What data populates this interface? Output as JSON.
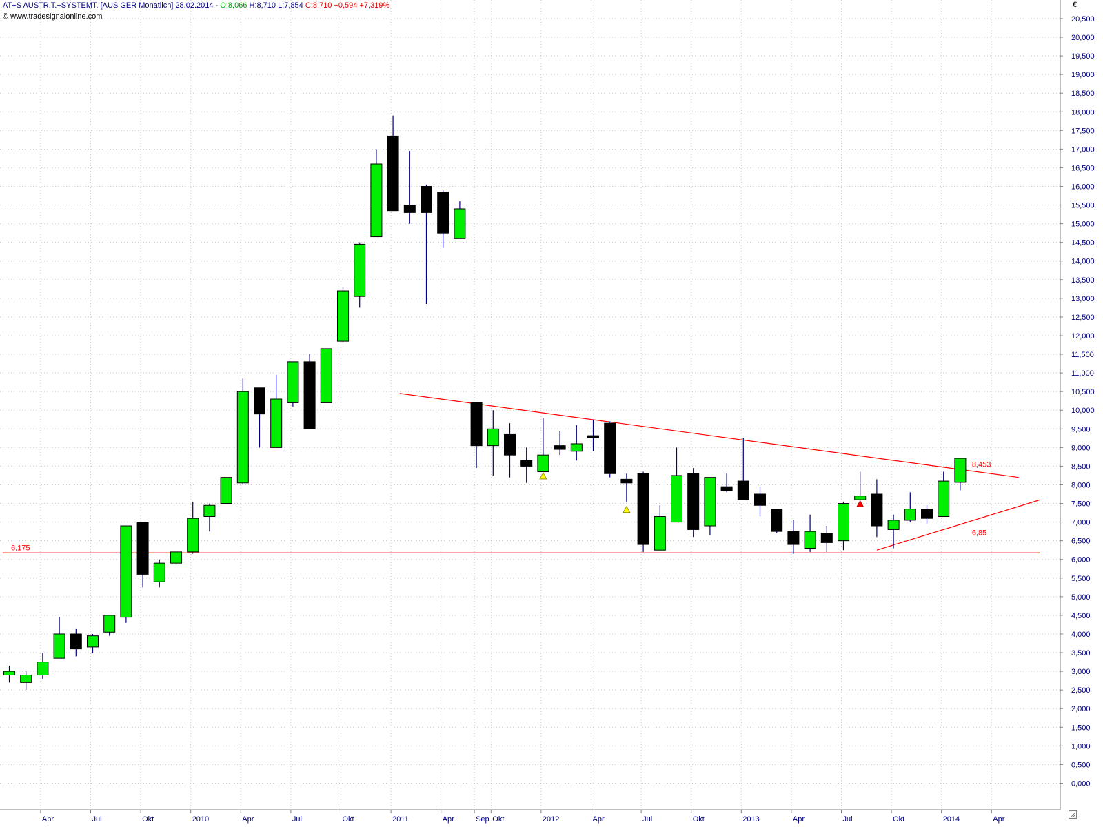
{
  "header": {
    "symbol": "AT+S AUSTR.T.+SYSTEMT. [AUS GER  Monatlich]",
    "date": "28.02.2014",
    "sep": "-",
    "open": "O:8,066",
    "high": "H:8,710",
    "low": "L:7,854",
    "close": "C:8,710",
    "change": "+0,594",
    "change_pct": "+7,319%",
    "copyright": "© www.tradesignalonline.com"
  },
  "currency": "€",
  "colors": {
    "up": "#00ee00",
    "down": "#000000",
    "wick": "#000080",
    "line": "#ff0000",
    "grid": "#c8c8c8",
    "axis_text": "#000080"
  },
  "chart_data": {
    "type": "candlestick",
    "title": "AT+S AUSTR.T.+SYSTEMT. [AUS GER  Monatlich]",
    "ylim": [
      -0.25,
      20.85
    ],
    "yticks": [
      "0,000",
      "0,500",
      "1,000",
      "1,500",
      "2,000",
      "2,500",
      "3,000",
      "3,500",
      "4,000",
      "4,500",
      "5,000",
      "5,500",
      "6,000",
      "6,500",
      "7,000",
      "7,500",
      "8,000",
      "8,500",
      "9,000",
      "9,500",
      "10,000",
      "10,500",
      "11,000",
      "11,500",
      "12,000",
      "12,500",
      "13,000",
      "13,500",
      "14,000",
      "14,500",
      "15,000",
      "15,500",
      "16,000",
      "16,500",
      "17,000",
      "17,500",
      "18,000",
      "18,500",
      "19,000",
      "19,500",
      "20,000",
      "20,500"
    ],
    "xlabels": [
      {
        "i": 2,
        "label": "Apr"
      },
      {
        "i": 5,
        "label": "Jul"
      },
      {
        "i": 8,
        "label": "Okt"
      },
      {
        "i": 11,
        "label": "2010"
      },
      {
        "i": 14,
        "label": "Apr"
      },
      {
        "i": 17,
        "label": "Jul"
      },
      {
        "i": 20,
        "label": "Okt"
      },
      {
        "i": 23,
        "label": "2011"
      },
      {
        "i": 26,
        "label": "Apr"
      },
      {
        "i": 28,
        "label": "Sep"
      },
      {
        "i": 29,
        "label": "Okt"
      },
      {
        "i": 32,
        "label": "2012"
      },
      {
        "i": 35,
        "label": "Apr"
      },
      {
        "i": 38,
        "label": "Jul"
      },
      {
        "i": 41,
        "label": "Okt"
      },
      {
        "i": 44,
        "label": "2013"
      },
      {
        "i": 47,
        "label": "Apr"
      },
      {
        "i": 50,
        "label": "Jul"
      },
      {
        "i": 53,
        "label": "Okt"
      },
      {
        "i": 56,
        "label": "2014"
      },
      {
        "i": 59,
        "label": "Apr"
      }
    ],
    "candles": [
      {
        "i": 0,
        "o": 2.9,
        "h": 3.15,
        "l": 2.7,
        "c": 3.0
      },
      {
        "i": 1,
        "o": 2.7,
        "h": 3.0,
        "l": 2.5,
        "c": 2.9
      },
      {
        "i": 2,
        "o": 2.9,
        "h": 3.5,
        "l": 2.8,
        "c": 3.25
      },
      {
        "i": 3,
        "o": 3.35,
        "h": 4.45,
        "l": 3.35,
        "c": 4.0
      },
      {
        "i": 4,
        "o": 4.0,
        "h": 4.15,
        "l": 3.4,
        "c": 3.6
      },
      {
        "i": 5,
        "o": 3.65,
        "h": 4.0,
        "l": 3.5,
        "c": 3.95
      },
      {
        "i": 6,
        "o": 4.05,
        "h": 4.5,
        "l": 3.95,
        "c": 4.5
      },
      {
        "i": 7,
        "o": 4.45,
        "h": 6.9,
        "l": 4.3,
        "c": 6.9
      },
      {
        "i": 8,
        "o": 7.0,
        "h": 7.0,
        "l": 5.25,
        "c": 5.6
      },
      {
        "i": 9,
        "o": 5.4,
        "h": 6.0,
        "l": 5.25,
        "c": 5.9
      },
      {
        "i": 10,
        "o": 5.9,
        "h": 6.2,
        "l": 5.85,
        "c": 6.2
      },
      {
        "i": 11,
        "o": 6.2,
        "h": 7.55,
        "l": 6.15,
        "c": 7.1
      },
      {
        "i": 12,
        "o": 7.15,
        "h": 7.5,
        "l": 6.75,
        "c": 7.45
      },
      {
        "i": 13,
        "o": 7.5,
        "h": 8.2,
        "l": 7.5,
        "c": 8.2
      },
      {
        "i": 14,
        "o": 8.05,
        "h": 10.85,
        "l": 8.0,
        "c": 10.5
      },
      {
        "i": 15,
        "o": 10.6,
        "h": 10.6,
        "l": 9.0,
        "c": 9.9
      },
      {
        "i": 16,
        "o": 9.0,
        "h": 10.95,
        "l": 9.0,
        "c": 10.3
      },
      {
        "i": 17,
        "o": 10.2,
        "h": 11.3,
        "l": 10.1,
        "c": 11.3
      },
      {
        "i": 18,
        "o": 11.3,
        "h": 11.5,
        "l": 9.5,
        "c": 9.5
      },
      {
        "i": 19,
        "o": 10.2,
        "h": 11.65,
        "l": 10.2,
        "c": 11.65
      },
      {
        "i": 20,
        "o": 11.85,
        "h": 13.3,
        "l": 11.8,
        "c": 13.2
      },
      {
        "i": 21,
        "o": 13.05,
        "h": 14.5,
        "l": 12.75,
        "c": 14.45
      },
      {
        "i": 22,
        "o": 14.65,
        "h": 17.0,
        "l": 14.65,
        "c": 16.6
      },
      {
        "i": 23,
        "o": 17.35,
        "h": 17.9,
        "l": 15.35,
        "c": 15.35
      },
      {
        "i": 24,
        "o": 15.5,
        "h": 16.95,
        "l": 15.0,
        "c": 15.3
      },
      {
        "i": 25,
        "o": 16.0,
        "h": 16.05,
        "l": 12.85,
        "c": 15.3
      },
      {
        "i": 26,
        "o": 15.85,
        "h": 15.9,
        "l": 14.35,
        "c": 14.75
      },
      {
        "i": 27,
        "o": 14.6,
        "h": 15.6,
        "l": 14.6,
        "c": 15.4
      },
      {
        "i": 28,
        "o": 10.2,
        "h": 10.2,
        "l": 8.45,
        "c": 9.05
      },
      {
        "i": 29,
        "o": 9.05,
        "h": 10.0,
        "l": 8.25,
        "c": 9.5
      },
      {
        "i": 30,
        "o": 9.35,
        "h": 9.65,
        "l": 8.2,
        "c": 8.8
      },
      {
        "i": 31,
        "o": 8.65,
        "h": 9.0,
        "l": 8.05,
        "c": 8.5
      },
      {
        "i": 32,
        "o": 8.35,
        "h": 9.8,
        "l": 8.35,
        "c": 8.8
      },
      {
        "i": 33,
        "o": 9.05,
        "h": 9.45,
        "l": 8.8,
        "c": 8.95
      },
      {
        "i": 34,
        "o": 8.9,
        "h": 9.6,
        "l": 8.65,
        "c": 9.1
      },
      {
        "i": 35,
        "o": 9.3,
        "h": 9.75,
        "l": 8.9,
        "c": 9.25
      },
      {
        "i": 36,
        "o": 9.65,
        "h": 9.7,
        "l": 8.2,
        "c": 8.3
      },
      {
        "i": 37,
        "o": 8.15,
        "h": 8.3,
        "l": 7.55,
        "c": 8.05
      },
      {
        "i": 38,
        "o": 8.3,
        "h": 8.35,
        "l": 6.2,
        "c": 6.4
      },
      {
        "i": 39,
        "o": 6.25,
        "h": 7.45,
        "l": 6.25,
        "c": 7.15
      },
      {
        "i": 40,
        "o": 7.0,
        "h": 9.0,
        "l": 7.0,
        "c": 8.25
      },
      {
        "i": 41,
        "o": 8.3,
        "h": 8.45,
        "l": 6.6,
        "c": 6.8
      },
      {
        "i": 42,
        "o": 6.9,
        "h": 8.2,
        "l": 6.65,
        "c": 8.2
      },
      {
        "i": 43,
        "o": 7.95,
        "h": 8.3,
        "l": 7.8,
        "c": 7.85
      },
      {
        "i": 44,
        "o": 8.1,
        "h": 9.25,
        "l": 7.6,
        "c": 7.6
      },
      {
        "i": 45,
        "o": 7.75,
        "h": 7.95,
        "l": 7.15,
        "c": 7.45
      },
      {
        "i": 46,
        "o": 7.35,
        "h": 7.35,
        "l": 6.7,
        "c": 6.75
      },
      {
        "i": 47,
        "o": 6.75,
        "h": 7.05,
        "l": 6.15,
        "c": 6.4
      },
      {
        "i": 48,
        "o": 6.3,
        "h": 7.2,
        "l": 6.2,
        "c": 6.75
      },
      {
        "i": 49,
        "o": 6.7,
        "h": 6.9,
        "l": 6.2,
        "c": 6.45
      },
      {
        "i": 50,
        "o": 6.5,
        "h": 7.55,
        "l": 6.25,
        "c": 7.5
      },
      {
        "i": 51,
        "o": 7.6,
        "h": 8.35,
        "l": 7.6,
        "c": 7.7
      },
      {
        "i": 52,
        "o": 7.75,
        "h": 8.15,
        "l": 6.6,
        "c": 6.9
      },
      {
        "i": 53,
        "o": 6.8,
        "h": 7.2,
        "l": 6.3,
        "c": 7.05
      },
      {
        "i": 54,
        "o": 7.05,
        "h": 7.8,
        "l": 7.0,
        "c": 7.35
      },
      {
        "i": 55,
        "o": 7.35,
        "h": 7.45,
        "l": 6.95,
        "c": 7.1
      },
      {
        "i": 56,
        "o": 7.15,
        "h": 8.35,
        "l": 7.15,
        "c": 8.1
      },
      {
        "i": 57,
        "o": 8.066,
        "h": 8.71,
        "l": 7.854,
        "c": 8.71
      }
    ],
    "markers": [
      {
        "i": 32,
        "value": 8.25,
        "type": "triangle-up",
        "color": "#ffff00"
      },
      {
        "i": 37,
        "value": 7.35,
        "type": "triangle-up",
        "color": "#ffff00"
      },
      {
        "i": 51,
        "value": 7.5,
        "type": "triangle-up",
        "color": "#ff0000"
      }
    ],
    "lines": [
      {
        "name": "support",
        "label": "6,175",
        "from": {
          "i": -0.4,
          "v": 6.175
        },
        "to": {
          "i": 61.8,
          "v": 6.175
        }
      },
      {
        "name": "downtrend",
        "label": "8,453",
        "label_at": {
          "i": 57.7,
          "v": 8.48
        },
        "from": {
          "i": 23.4,
          "v": 10.45
        },
        "to": {
          "i": 60.5,
          "v": 8.2
        }
      },
      {
        "name": "uptrend",
        "label": "6,85",
        "label_at": {
          "i": 57.7,
          "v": 6.65
        },
        "from": {
          "i": 52.0,
          "v": 6.25
        },
        "to": {
          "i": 61.8,
          "v": 7.6
        }
      }
    ],
    "grid": true,
    "legend": "none"
  }
}
